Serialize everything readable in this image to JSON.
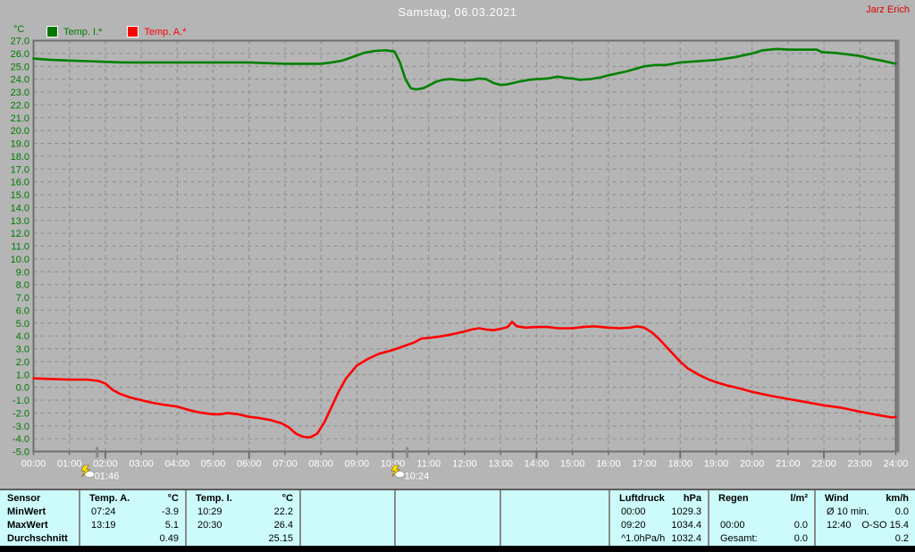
{
  "header": {
    "title": "Samstag, 06.03.2021",
    "user": "Jarz Erich"
  },
  "legend": {
    "unit": "°C",
    "items": [
      {
        "label": "Temp. I.*",
        "color": "#007800"
      },
      {
        "label": "Temp. A.*",
        "color": "#ff0000"
      }
    ]
  },
  "chart_data": {
    "type": "line",
    "title": "Samstag, 06.03.2021",
    "ylabel": "°C",
    "ylim": [
      -5,
      27
    ],
    "y_tick_step": 1,
    "grid": true,
    "x_hours": [
      0,
      24
    ],
    "x_tick_labels": [
      "00:00",
      "01:00",
      "02:00",
      "03:00",
      "04:00",
      "05:00",
      "06:00",
      "07:00",
      "08:00",
      "09:00",
      "10:00",
      "11:00",
      "12:00",
      "13:00",
      "14:00",
      "15:00",
      "16:00",
      "17:00",
      "18:00",
      "19:00",
      "20:00",
      "21:00",
      "22:00",
      "23:00",
      "24:00"
    ],
    "event_markers": [
      {
        "t": 1.77,
        "time": "01:46"
      },
      {
        "t": 10.4,
        "time": "10:24"
      }
    ],
    "series": [
      {
        "name": "Temp. I.*",
        "color": "#008000",
        "points": [
          [
            0,
            25.6
          ],
          [
            0.5,
            25.5
          ],
          [
            1,
            25.45
          ],
          [
            1.5,
            25.4
          ],
          [
            2,
            25.35
          ],
          [
            2.5,
            25.3
          ],
          [
            3.5,
            25.3
          ],
          [
            4.5,
            25.3
          ],
          [
            5.5,
            25.3
          ],
          [
            6,
            25.3
          ],
          [
            6.5,
            25.25
          ],
          [
            7,
            25.2
          ],
          [
            8,
            25.2
          ],
          [
            8.3,
            25.3
          ],
          [
            8.6,
            25.45
          ],
          [
            8.9,
            25.75
          ],
          [
            9.2,
            26.05
          ],
          [
            9.5,
            26.2
          ],
          [
            9.8,
            26.25
          ],
          [
            10.05,
            26.15
          ],
          [
            10.2,
            25.3
          ],
          [
            10.35,
            24.0
          ],
          [
            10.5,
            23.3
          ],
          [
            10.65,
            23.2
          ],
          [
            10.85,
            23.3
          ],
          [
            11,
            23.5
          ],
          [
            11.2,
            23.8
          ],
          [
            11.4,
            23.95
          ],
          [
            11.6,
            24.0
          ],
          [
            11.8,
            23.95
          ],
          [
            12,
            23.9
          ],
          [
            12.2,
            23.95
          ],
          [
            12.4,
            24.05
          ],
          [
            12.6,
            24.0
          ],
          [
            12.8,
            23.7
          ],
          [
            13,
            23.55
          ],
          [
            13.2,
            23.6
          ],
          [
            13.5,
            23.8
          ],
          [
            13.8,
            23.95
          ],
          [
            14,
            24.0
          ],
          [
            14.3,
            24.05
          ],
          [
            14.6,
            24.2
          ],
          [
            14.8,
            24.1
          ],
          [
            15,
            24.05
          ],
          [
            15.2,
            23.95
          ],
          [
            15.5,
            24.0
          ],
          [
            15.8,
            24.15
          ],
          [
            16,
            24.3
          ],
          [
            16.5,
            24.6
          ],
          [
            17,
            25.0
          ],
          [
            17.3,
            25.1
          ],
          [
            17.6,
            25.1
          ],
          [
            18,
            25.3
          ],
          [
            18.5,
            25.4
          ],
          [
            19,
            25.5
          ],
          [
            19.5,
            25.7
          ],
          [
            20,
            26.0
          ],
          [
            20.3,
            26.25
          ],
          [
            20.7,
            26.35
          ],
          [
            21,
            26.3
          ],
          [
            21.8,
            26.3
          ],
          [
            21.95,
            26.1
          ],
          [
            22.3,
            26.05
          ],
          [
            22.6,
            25.95
          ],
          [
            23,
            25.8
          ],
          [
            23.3,
            25.6
          ],
          [
            23.6,
            25.45
          ],
          [
            24,
            25.2
          ]
        ]
      },
      {
        "name": "Temp. A.*",
        "color": "#ff0000",
        "points": [
          [
            0,
            0.7
          ],
          [
            0.5,
            0.65
          ],
          [
            1,
            0.6
          ],
          [
            1.5,
            0.6
          ],
          [
            1.8,
            0.5
          ],
          [
            2,
            0.3
          ],
          [
            2.2,
            -0.2
          ],
          [
            2.4,
            -0.5
          ],
          [
            2.7,
            -0.8
          ],
          [
            3,
            -1.0
          ],
          [
            3.3,
            -1.2
          ],
          [
            3.6,
            -1.35
          ],
          [
            4,
            -1.5
          ],
          [
            4.3,
            -1.75
          ],
          [
            4.6,
            -1.95
          ],
          [
            5,
            -2.1
          ],
          [
            5.2,
            -2.1
          ],
          [
            5.4,
            -2.0
          ],
          [
            5.7,
            -2.1
          ],
          [
            6,
            -2.3
          ],
          [
            6.3,
            -2.4
          ],
          [
            6.6,
            -2.55
          ],
          [
            6.9,
            -2.8
          ],
          [
            7.1,
            -3.1
          ],
          [
            7.3,
            -3.6
          ],
          [
            7.5,
            -3.85
          ],
          [
            7.7,
            -3.9
          ],
          [
            7.9,
            -3.6
          ],
          [
            8.1,
            -2.7
          ],
          [
            8.3,
            -1.5
          ],
          [
            8.5,
            -0.3
          ],
          [
            8.7,
            0.7
          ],
          [
            9,
            1.7
          ],
          [
            9.3,
            2.2
          ],
          [
            9.6,
            2.6
          ],
          [
            10,
            2.9
          ],
          [
            10.3,
            3.2
          ],
          [
            10.6,
            3.5
          ],
          [
            10.8,
            3.8
          ],
          [
            11,
            3.85
          ],
          [
            11.3,
            3.95
          ],
          [
            11.6,
            4.1
          ],
          [
            12,
            4.35
          ],
          [
            12.2,
            4.5
          ],
          [
            12.4,
            4.6
          ],
          [
            12.6,
            4.5
          ],
          [
            12.8,
            4.45
          ],
          [
            13,
            4.55
          ],
          [
            13.2,
            4.7
          ],
          [
            13.32,
            5.1
          ],
          [
            13.45,
            4.75
          ],
          [
            13.7,
            4.65
          ],
          [
            14,
            4.7
          ],
          [
            14.3,
            4.7
          ],
          [
            14.6,
            4.6
          ],
          [
            15,
            4.6
          ],
          [
            15.3,
            4.7
          ],
          [
            15.6,
            4.75
          ],
          [
            16,
            4.65
          ],
          [
            16.3,
            4.6
          ],
          [
            16.6,
            4.65
          ],
          [
            16.8,
            4.75
          ],
          [
            17,
            4.65
          ],
          [
            17.2,
            4.3
          ],
          [
            17.4,
            3.8
          ],
          [
            17.6,
            3.2
          ],
          [
            17.8,
            2.6
          ],
          [
            18,
            2.0
          ],
          [
            18.2,
            1.5
          ],
          [
            18.5,
            1.0
          ],
          [
            18.8,
            0.6
          ],
          [
            19,
            0.4
          ],
          [
            19.3,
            0.15
          ],
          [
            19.6,
            -0.05
          ],
          [
            20,
            -0.35
          ],
          [
            20.5,
            -0.65
          ],
          [
            21,
            -0.9
          ],
          [
            21.5,
            -1.15
          ],
          [
            22,
            -1.4
          ],
          [
            22.5,
            -1.6
          ],
          [
            23,
            -1.9
          ],
          [
            23.3,
            -2.05
          ],
          [
            23.6,
            -2.2
          ],
          [
            23.9,
            -2.35
          ],
          [
            24,
            -2.3
          ]
        ]
      }
    ]
  },
  "table": {
    "row_labels": [
      "Sensor",
      "MinWert",
      "MaxWert",
      "Durchschnitt"
    ],
    "columns": [
      {
        "name": "Temp. A.",
        "unit": "°C",
        "rows": [
          [
            "07:24",
            "-3.9"
          ],
          [
            "13:19",
            "5.1"
          ],
          [
            "",
            "0.49"
          ]
        ]
      },
      {
        "name": "Temp. I.",
        "unit": "°C",
        "rows": [
          [
            "10:29",
            "22.2"
          ],
          [
            "20:30",
            "26.4"
          ],
          [
            "",
            "25.15"
          ]
        ]
      },
      {
        "name": "",
        "unit": "",
        "rows": [
          [
            "",
            ""
          ],
          [
            "",
            ""
          ],
          [
            "",
            ""
          ]
        ]
      },
      {
        "name": "",
        "unit": "",
        "rows": [
          [
            "",
            ""
          ],
          [
            "",
            ""
          ],
          [
            "",
            ""
          ]
        ]
      },
      {
        "name": "",
        "unit": "",
        "rows": [
          [
            "",
            ""
          ],
          [
            "",
            ""
          ],
          [
            "",
            ""
          ]
        ]
      },
      {
        "name": "Luftdruck",
        "unit": "hPa",
        "rows": [
          [
            "00:00",
            "1029.3"
          ],
          [
            "09:20",
            "1034.4"
          ],
          [
            "^1.0hPa/h",
            "1032.4"
          ]
        ]
      },
      {
        "name": "Regen",
        "unit": "l/m²",
        "rows": [
          [
            "",
            ""
          ],
          [
            "00:00",
            "0.0"
          ],
          [
            "Gesamt:",
            "0.0"
          ]
        ]
      },
      {
        "name": "Wind",
        "unit": "km/h",
        "rows": [
          [
            "Ø 10 min.",
            "0.0"
          ],
          [
            "12:40",
            "O-SO 15.4"
          ],
          [
            "",
            "0.2"
          ]
        ]
      }
    ]
  }
}
